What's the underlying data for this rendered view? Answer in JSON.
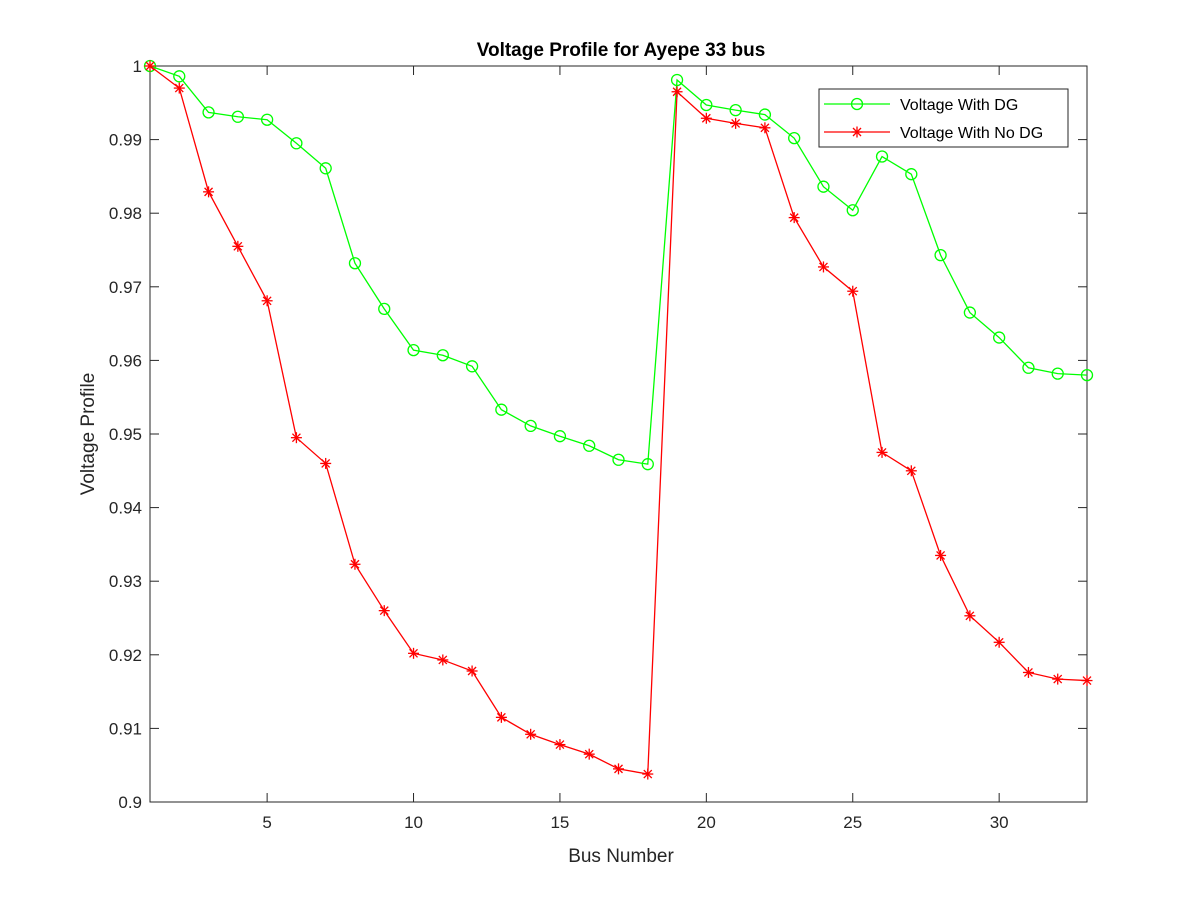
{
  "chart_data": {
    "type": "line",
    "title": "Voltage Profile for Ayepe 33 bus",
    "xlabel": "Bus Number",
    "ylabel": "Voltage Profile",
    "xlim": [
      1,
      33
    ],
    "ylim": [
      0.9,
      1.0
    ],
    "xticks": [
      5,
      10,
      15,
      20,
      25,
      30
    ],
    "yticks": [
      0.9,
      0.91,
      0.92,
      0.93,
      0.94,
      0.95,
      0.96,
      0.97,
      0.98,
      0.99,
      1
    ],
    "ytick_labels": [
      "0.9",
      "0.91",
      "0.92",
      "0.93",
      "0.94",
      "0.95",
      "0.96",
      "0.97",
      "0.98",
      "0.99",
      "1"
    ],
    "xtick_labels": [
      "5",
      "10",
      "15",
      "20",
      "25",
      "30"
    ],
    "grid": false,
    "legend_position": "top-right",
    "x": [
      1,
      2,
      3,
      4,
      5,
      6,
      7,
      8,
      9,
      10,
      11,
      12,
      13,
      14,
      15,
      16,
      17,
      18,
      19,
      20,
      21,
      22,
      23,
      24,
      25,
      26,
      27,
      28,
      29,
      30,
      31,
      32,
      33
    ],
    "series": [
      {
        "name": "Voltage With DG",
        "color": "#00ff00",
        "marker": "circle",
        "values": [
          1.0,
          0.9986,
          0.9937,
          0.9931,
          0.9927,
          0.9895,
          0.9861,
          0.9732,
          0.967,
          0.9614,
          0.9607,
          0.9592,
          0.9533,
          0.9511,
          0.9497,
          0.9484,
          0.9465,
          0.9459,
          0.9981,
          0.9947,
          0.994,
          0.9934,
          0.9902,
          0.9836,
          0.9804,
          0.9877,
          0.9853,
          0.9743,
          0.9665,
          0.9631,
          0.959,
          0.9582,
          0.958
        ]
      },
      {
        "name": "Voltage With No DG",
        "color": "#ff0000",
        "marker": "asterisk",
        "values": [
          1.0,
          0.997,
          0.9829,
          0.9755,
          0.9681,
          0.9495,
          0.946,
          0.9323,
          0.926,
          0.9202,
          0.9193,
          0.9178,
          0.9115,
          0.9092,
          0.9078,
          0.9065,
          0.9045,
          0.9038,
          0.9965,
          0.9929,
          0.9922,
          0.9916,
          0.9794,
          0.9727,
          0.9694,
          0.9475,
          0.945,
          0.9335,
          0.9253,
          0.9217,
          0.9176,
          0.9167,
          0.9165
        ]
      }
    ]
  }
}
